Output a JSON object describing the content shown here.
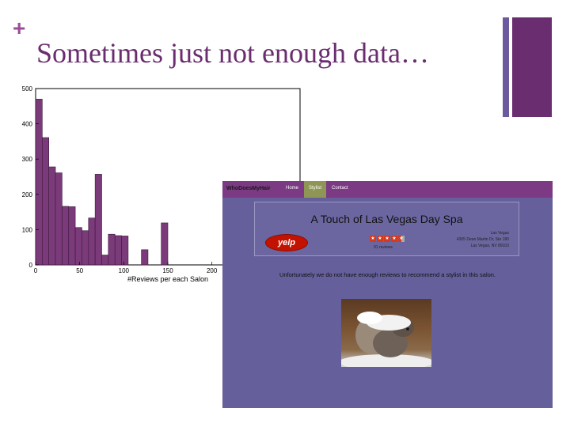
{
  "slide": {
    "bullet": "+",
    "title": "Sometimes just not enough data…",
    "accent_color": "#6a2d6f",
    "secondary_color": "#6b5a9e"
  },
  "chart_data": {
    "type": "bar",
    "title": "",
    "xlabel": "#Reviews per each Salon",
    "ylabel": "",
    "xlim": [
      0,
      300
    ],
    "ylim": [
      0,
      500
    ],
    "x_ticks": [
      0,
      50,
      100,
      150,
      200
    ],
    "y_ticks": [
      0,
      100,
      200,
      300,
      400,
      500
    ],
    "bin_width": 7.5,
    "bins": [
      {
        "x0": 0,
        "value": 470
      },
      {
        "x0": 7.5,
        "value": 361
      },
      {
        "x0": 15,
        "value": 278
      },
      {
        "x0": 22.5,
        "value": 261
      },
      {
        "x0": 30,
        "value": 166
      },
      {
        "x0": 37.5,
        "value": 165
      },
      {
        "x0": 45,
        "value": 106
      },
      {
        "x0": 52.5,
        "value": 97
      },
      {
        "x0": 60,
        "value": 133
      },
      {
        "x0": 67.5,
        "value": 257
      },
      {
        "x0": 75,
        "value": 28
      },
      {
        "x0": 82.5,
        "value": 87
      },
      {
        "x0": 90,
        "value": 83
      },
      {
        "x0": 97.5,
        "value": 82
      },
      {
        "x0": 120,
        "value": 43
      },
      {
        "x0": 142.5,
        "value": 119
      }
    ],
    "bar_color": "#7b3a7a"
  },
  "website": {
    "brand": "WhoDoesMyHair",
    "nav": [
      "Home",
      "Stylist",
      "Contact"
    ],
    "salon_name": "A Touch of Las Vegas Day Spa",
    "yelp_logo": "yelp",
    "rating_stars": 4.5,
    "reviews": "91 reviews",
    "address": [
      "Las Vegas",
      "4305 Dean Martin Dr, Ste 180",
      "Las Vegas, NV 89103"
    ],
    "message": "Unfortunately we do not have enough reviews to recommend a stylist in this salon."
  }
}
